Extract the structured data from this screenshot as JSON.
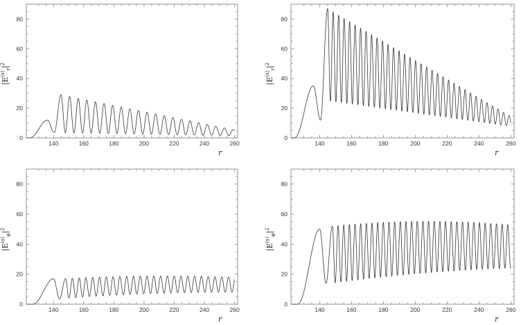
{
  "chart_data": [
    {
      "type": "line",
      "panel": "top-left",
      "ylabel": {
        "base": "|E",
        "sup": "(s)",
        "sub": "r",
        "tail": "|",
        "pow": "2"
      },
      "xlabel": "r",
      "xlim": [
        122,
        262
      ],
      "ylim": [
        0,
        90
      ],
      "x_ticks": [
        "140",
        "160",
        "180",
        "200",
        "220",
        "240",
        "260"
      ],
      "y_ticks": [
        "0",
        "20",
        "40",
        "60",
        "80"
      ],
      "grid": false,
      "series": [
        {
          "onset_x": 124,
          "first_peak_x": 136,
          "first_peak_y": 12,
          "first_trough_y": 3.5,
          "osc_start_x": 145,
          "osc_period": 5.7,
          "peak_start": 29,
          "peak_end": 5.5,
          "trough_start": 3.5,
          "trough_end": 1.5
        }
      ]
    },
    {
      "type": "line",
      "panel": "top-right",
      "ylabel": {
        "base": "|E",
        "sup": "(s)",
        "sub": "r",
        "tail": "|",
        "pow": "2"
      },
      "xlabel": "r",
      "xlim": [
        122,
        262
      ],
      "ylim": [
        0,
        90
      ],
      "x_ticks": [
        "140",
        "160",
        "180",
        "200",
        "220",
        "240",
        "260"
      ],
      "y_ticks": [
        "0",
        "20",
        "40",
        "60",
        "80"
      ],
      "grid": false,
      "series": [
        {
          "onset_x": 124,
          "first_peak_x": 136,
          "first_peak_y": 35,
          "first_trough_y": 12,
          "osc_start_x": 145,
          "osc_period": 3.45,
          "peak_start": 87,
          "peak_end": 15,
          "trough_start": 25,
          "trough_end": 8
        }
      ]
    },
    {
      "type": "line",
      "panel": "bottom-left",
      "ylabel": {
        "base": "|E",
        "sup": "(s)",
        "sub": "φ",
        "tail": "|",
        "pow": "2"
      },
      "xlabel": "r",
      "xlim": [
        122,
        262
      ],
      "ylim": [
        0,
        90
      ],
      "x_ticks": [
        "140",
        "160",
        "180",
        "200",
        "220",
        "240",
        "260"
      ],
      "y_ticks": [
        "0",
        "20",
        "40",
        "60",
        "80"
      ],
      "grid": false,
      "series": [
        {
          "onset_x": 126,
          "first_peak_x": 140,
          "first_peak_y": 17,
          "first_trough_y": 3.5,
          "osc_start_x": 148,
          "osc_period": 4.5,
          "peak_start": 17,
          "peak_mid": 20,
          "peak_end": 18,
          "trough_start": 4,
          "trough_mid": 8,
          "trough_end": 8
        }
      ]
    },
    {
      "type": "line",
      "panel": "bottom-right",
      "ylabel": {
        "base": "|E",
        "sup": "(s)",
        "sub": "φ",
        "tail": "|",
        "pow": "2"
      },
      "xlabel": "r",
      "xlim": [
        122,
        262
      ],
      "ylim": [
        0,
        90
      ],
      "x_ticks": [
        "140",
        "160",
        "180",
        "200",
        "220",
        "240",
        "260"
      ],
      "y_ticks": [
        "0",
        "20",
        "40",
        "60",
        "80"
      ],
      "grid": false,
      "series": [
        {
          "onset_x": 126,
          "first_peak_x": 140,
          "first_peak_y": 50,
          "first_trough_y": 14,
          "osc_start_x": 148,
          "osc_period": 3.55,
          "peak_start": 52,
          "peak_mid": 58,
          "peak_end": 53,
          "trough_start": 14,
          "trough_mid": 22,
          "trough_end": 24
        }
      ]
    }
  ]
}
